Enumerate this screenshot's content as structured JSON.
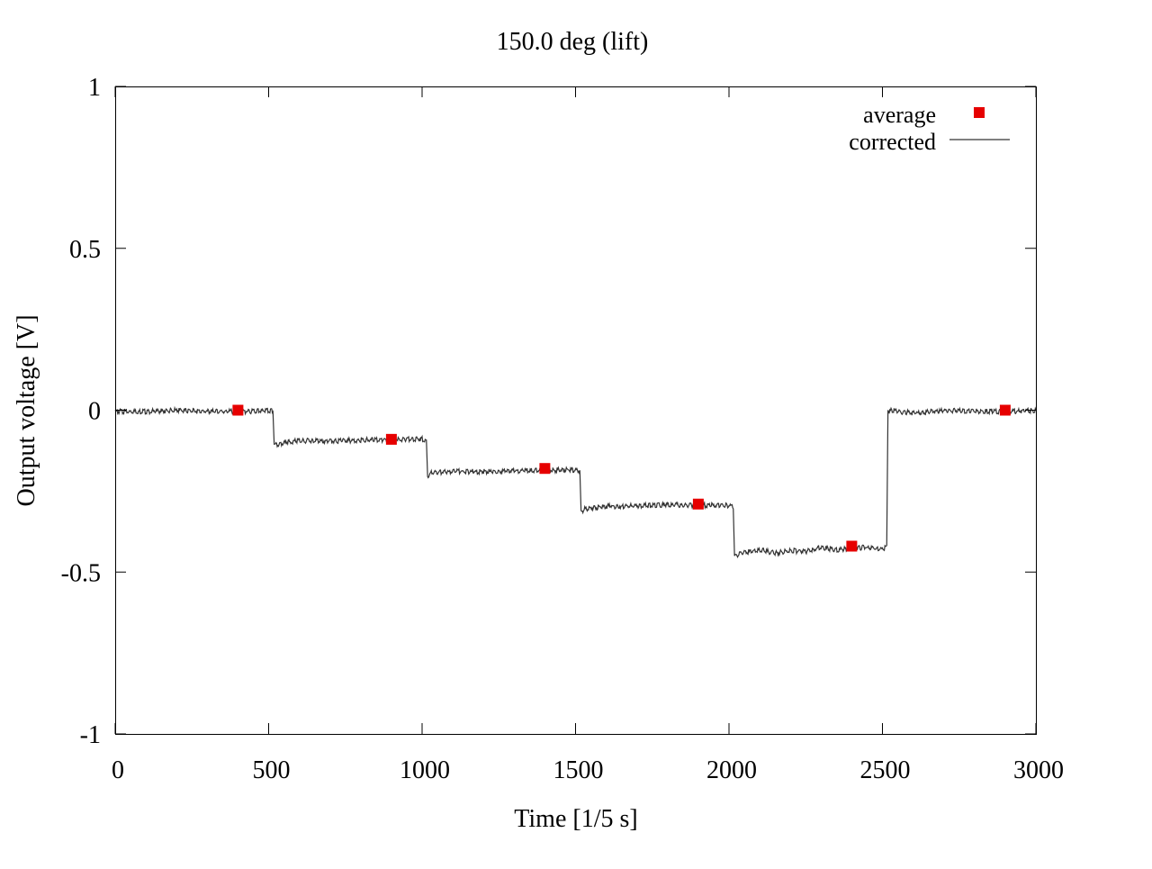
{
  "chart_data": {
    "type": "line",
    "title": "150.0 deg (lift)",
    "xlabel": "Time [1/5 s]",
    "ylabel": "Output voltage [V]",
    "xlim": [
      0,
      3000
    ],
    "ylim": [
      -1,
      1
    ],
    "x_ticks": [
      0,
      500,
      1000,
      1500,
      2000,
      2500,
      3000
    ],
    "x_tick_labels": [
      "0",
      "500",
      "1000",
      "1500",
      "2000",
      "2500",
      "3000"
    ],
    "y_ticks": [
      1,
      0.5,
      0,
      -0.5,
      -1
    ],
    "y_tick_labels": [
      "1",
      "0.5",
      "0",
      "-0.5",
      "-1"
    ],
    "grid": false,
    "legend_position": "top-right",
    "series": [
      {
        "name": "average",
        "style": "points",
        "marker": "square",
        "color": "#e60000",
        "x": [
          400,
          900,
          1400,
          1900,
          2400,
          2900
        ],
        "y": [
          0.0,
          -0.09,
          -0.18,
          -0.29,
          -0.42,
          0.0
        ]
      },
      {
        "name": "corrected",
        "style": "line",
        "color": "#333333",
        "x": [
          0,
          100,
          200,
          300,
          400,
          500,
          515,
          518,
          530,
          600,
          700,
          800,
          900,
          1000,
          1015,
          1018,
          1030,
          1100,
          1200,
          1300,
          1400,
          1500,
          1515,
          1518,
          1530,
          1600,
          1700,
          1800,
          1900,
          2000,
          2015,
          2018,
          2030,
          2100,
          2150,
          2200,
          2250,
          2300,
          2350,
          2400,
          2450,
          2500,
          2515,
          2518,
          2530,
          2600,
          2700,
          2800,
          2900,
          3000
        ],
        "y": [
          0.0,
          0.0,
          0.003,
          0.0,
          0.0,
          0.002,
          0.0,
          -0.105,
          -0.1,
          -0.09,
          -0.092,
          -0.088,
          -0.087,
          -0.085,
          -0.09,
          -0.205,
          -0.19,
          -0.185,
          -0.186,
          -0.183,
          -0.182,
          -0.18,
          -0.185,
          -0.31,
          -0.3,
          -0.293,
          -0.292,
          -0.288,
          -0.29,
          -0.29,
          -0.295,
          -0.45,
          -0.44,
          -0.427,
          -0.438,
          -0.43,
          -0.432,
          -0.42,
          -0.428,
          -0.422,
          -0.42,
          -0.425,
          -0.42,
          0.0,
          0.003,
          -0.005,
          0.003,
          0.001,
          0.0,
          0.003
        ]
      }
    ]
  }
}
